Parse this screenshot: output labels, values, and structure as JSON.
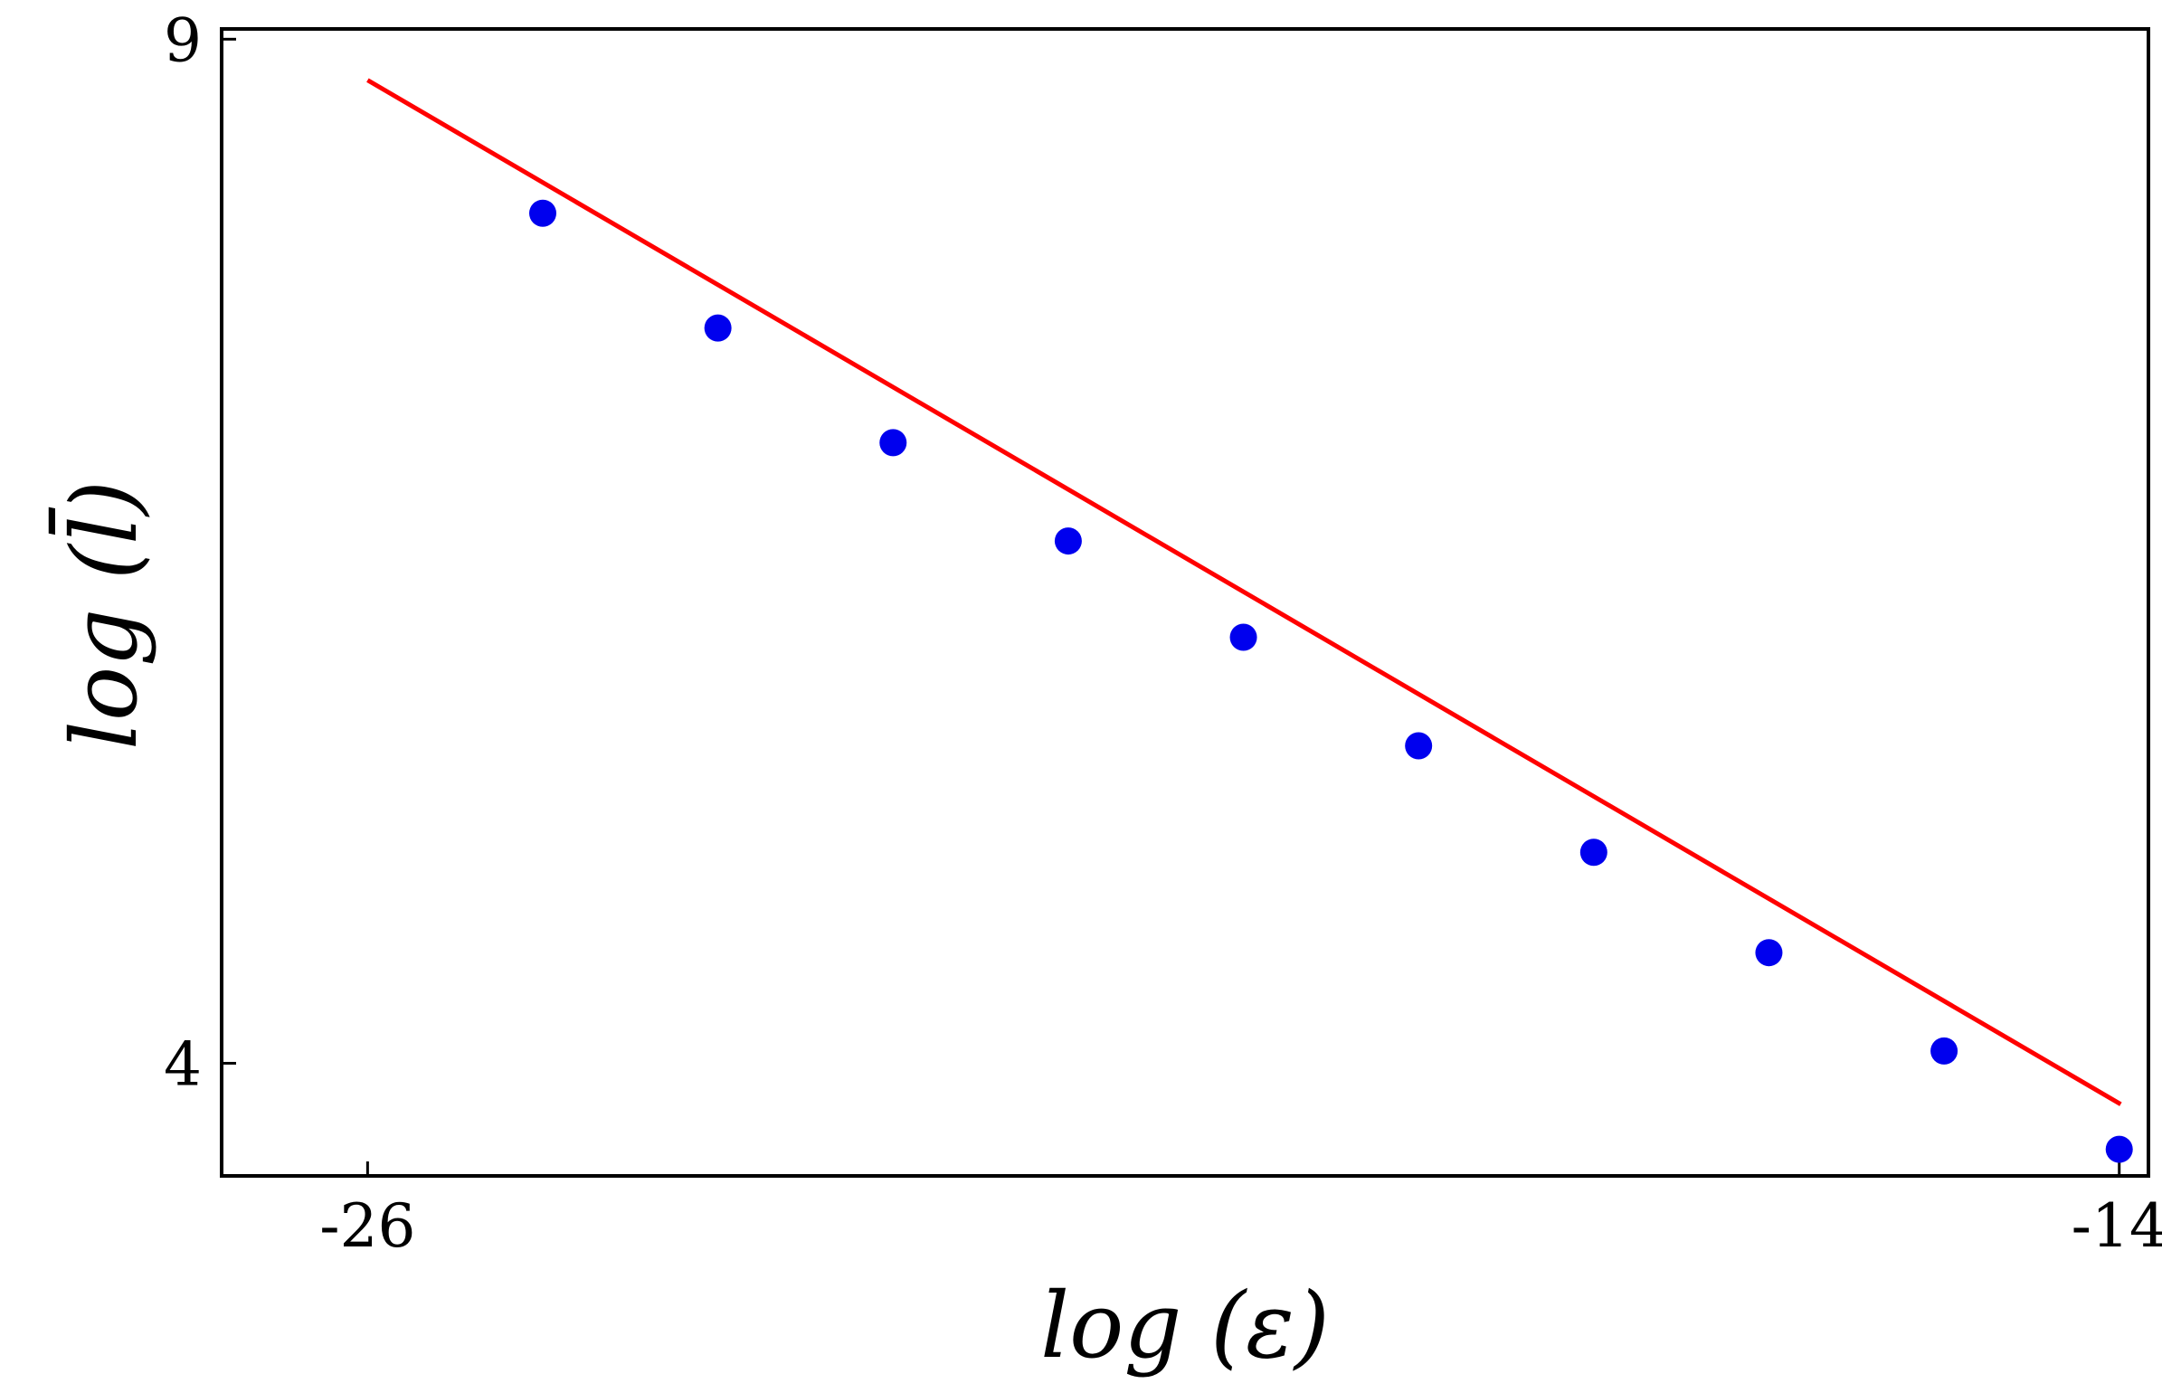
{
  "chart_data": {
    "type": "scatter",
    "title": "",
    "xlabel": "log (ε)",
    "ylabel": "log (l̄)",
    "xlim": [
      -27,
      -13.8
    ],
    "ylim": [
      3.45,
      9.05
    ],
    "x_ticks": [
      {
        "value": -26,
        "label": "-26"
      },
      {
        "value": -14,
        "label": "-14"
      }
    ],
    "y_ticks": [
      {
        "value": 9,
        "label": "9"
      },
      {
        "value": 4,
        "label": "4"
      }
    ],
    "grid": false,
    "legend": "none",
    "series": [
      {
        "kind": "points",
        "color": "#0000ee",
        "x": [
          -24.8,
          -23.6,
          -22.4,
          -21.2,
          -20.0,
          -18.8,
          -17.6,
          -16.4,
          -15.2,
          -14.0
        ],
        "y": [
          8.15,
          7.59,
          7.03,
          6.55,
          6.08,
          5.55,
          5.03,
          4.54,
          4.06,
          3.58
        ]
      },
      {
        "kind": "line",
        "color": "#ff0000",
        "x": [
          -26.0,
          -13.99
        ],
        "y": [
          8.8,
          3.8
        ]
      }
    ]
  }
}
